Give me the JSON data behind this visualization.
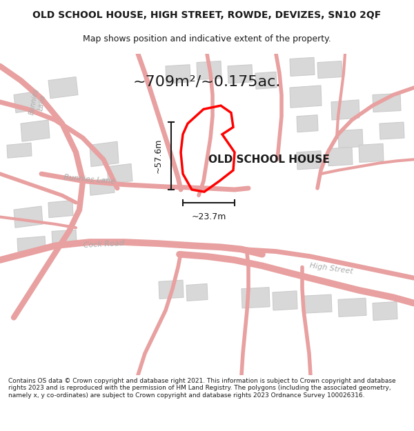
{
  "title_line1": "OLD SCHOOL HOUSE, HIGH STREET, ROWDE, DEVIZES, SN10 2QF",
  "title_line2": "Map shows position and indicative extent of the property.",
  "area_text": "~709m²/~0.175ac.",
  "label_property": "OLD SCHOOL HOUSE",
  "label_height": "~57.6m",
  "label_width": "~23.7m",
  "road_bunnies": "Bunnies Lane",
  "road_cock": "Cock Road",
  "road_high": "High Street",
  "footer": "Contains OS data © Crown copyright and database right 2021. This information is subject to Crown copyright and database rights 2023 and is reproduced with the permission of HM Land Registry. The polygons (including the associated geometry, namely x, y co-ordinates) are subject to Crown copyright and database rights 2023 Ordnance Survey 100026316.",
  "bg_color": "#ffffff",
  "map_bg": "#f5f5f5",
  "road_color": "#e8a0a0",
  "building_fill": "#d8d8d8",
  "building_edge": "#cccccc",
  "property_color": "#ff0000",
  "dim_color": "#1a1a1a",
  "road_label_color": "#aaaaaa",
  "title_color": "#1a1a1a",
  "footer_color": "#1a1a1a"
}
